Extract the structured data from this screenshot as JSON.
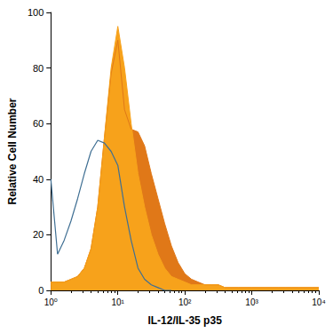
{
  "chart_data": {
    "type": "line",
    "x_label": "IL-12/IL-35 p35",
    "y_label": "Relative Cell Number",
    "log": "x",
    "grid": false,
    "xlim": [
      1,
      10000
    ],
    "xticks": [
      {
        "value": 1,
        "label": "10⁰"
      },
      {
        "value": 10,
        "label": "10¹"
      },
      {
        "value": 100,
        "label": "10²"
      },
      {
        "value": 1000,
        "label": "10³"
      },
      {
        "value": 10000,
        "label": "10⁴"
      }
    ],
    "ylim": [
      0,
      100
    ],
    "yticks": [
      0,
      20,
      40,
      60,
      80,
      100
    ],
    "x": [
      1,
      1.26,
      1.58,
      2,
      2.51,
      3.16,
      3.98,
      5.01,
      6.31,
      7.94,
      10,
      12.6,
      15.8,
      20,
      25.1,
      31.6,
      39.8,
      50.1,
      63.1,
      79.4,
      100,
      126,
      158,
      200,
      251,
      316,
      398,
      501,
      631,
      794,
      1000,
      1260,
      1580,
      2000,
      2510,
      3160,
      3980,
      5010,
      6310,
      7940,
      10000
    ],
    "series": [
      {
        "type": "area",
        "color": "#e07818",
        "values": [
          3,
          3,
          3,
          4,
          5,
          8,
          15,
          30,
          55,
          78,
          90,
          65,
          58,
          57,
          52,
          42,
          33,
          24,
          16,
          10,
          6,
          4,
          3,
          2,
          2,
          2,
          1,
          1,
          1,
          1,
          1,
          1,
          1,
          1,
          1,
          1,
          1,
          1,
          1,
          1,
          1
        ]
      },
      {
        "type": "area",
        "color": "#f7a21b",
        "values": [
          3,
          3,
          3,
          4,
          5,
          8,
          15,
          30,
          55,
          80,
          95,
          80,
          60,
          42,
          30,
          20,
          13,
          8,
          5,
          4,
          3,
          2,
          2,
          2,
          2,
          2,
          1,
          1,
          1,
          1,
          1,
          1,
          1,
          1,
          1,
          1,
          1,
          1,
          1,
          1,
          1
        ]
      },
      {
        "type": "line",
        "color": "#3f6f93",
        "values": [
          40,
          13,
          18,
          25,
          33,
          42,
          50,
          54,
          53,
          50,
          45,
          30,
          18,
          8,
          4,
          2,
          1,
          0,
          0,
          null,
          null,
          null,
          null,
          null,
          null,
          null,
          null,
          null,
          null,
          null,
          null,
          null,
          null,
          null,
          null,
          null,
          null,
          null,
          null,
          null,
          null
        ]
      }
    ]
  }
}
